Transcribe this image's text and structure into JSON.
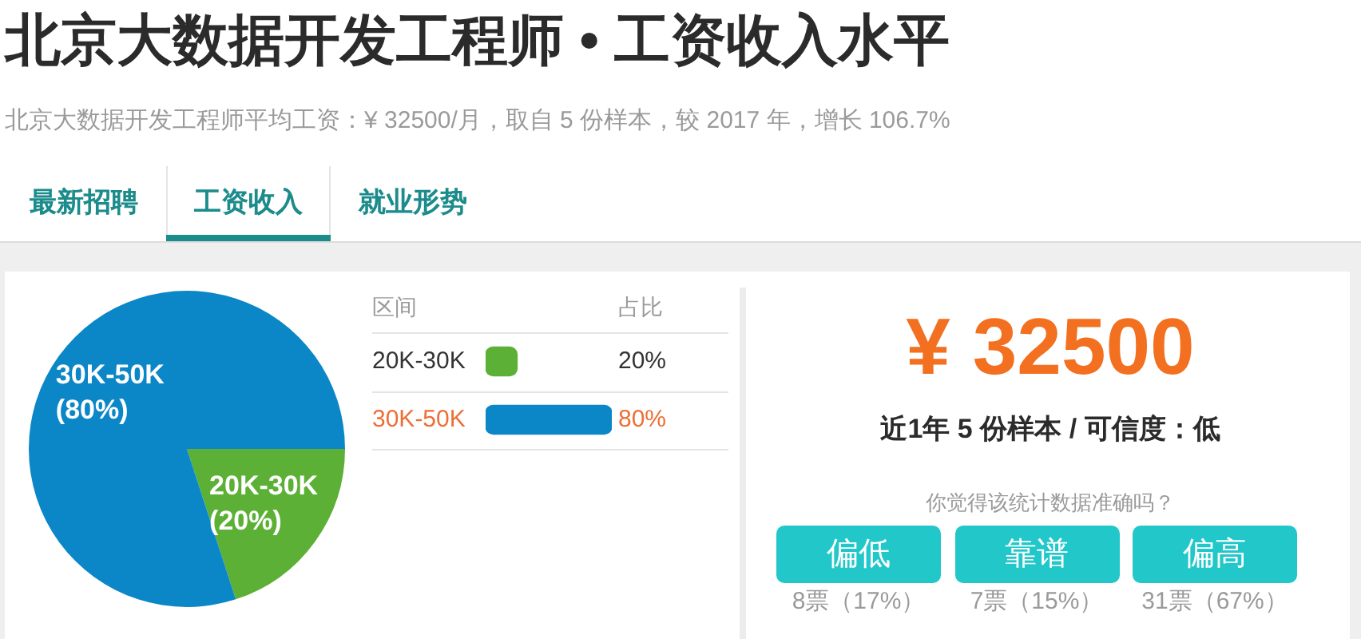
{
  "chart_data": [
    {
      "type": "other",
      "title": "北京大数据开发工程师 • 工资收入水平",
      "subtitle": "北京大数据开发工程师平均工资：¥ 32500/月，取自 5 份样本，较 2017 年，增长 106.7%",
      "annotations": [
        "最新招聘",
        "工资收入",
        "就业形势"
      ]
    },
    {
      "type": "pie",
      "categories": [
        "20K-30K",
        "30K-50K"
      ],
      "values": [
        20,
        80
      ],
      "colors": [
        "#5bb035",
        "#0b86c7"
      ],
      "value_labels": [
        "(20%)",
        "(80%)"
      ]
    },
    {
      "type": "bar",
      "orientation": "horizontal",
      "ylabel": "区间",
      "xlabel": "占比",
      "categories": [
        "20K-30K",
        "30K-50K"
      ],
      "values": [
        20,
        80
      ],
      "colors": [
        "#5bb035",
        "#0b86c7"
      ],
      "value_labels": [
        "20%",
        "80%"
      ],
      "grid": "y",
      "tick_labels": "y"
    },
    {
      "type": "other",
      "title": "¥ 32500",
      "subtitle": "近1年 5 份样本 / 可信度：低",
      "annotations": [
        "你觉得该统计数据准确吗？",
        "偏低",
        "靠谱",
        "偏高",
        "8票（17%）",
        "7票（15%）",
        "31票（67%）"
      ]
    }
  ]
}
